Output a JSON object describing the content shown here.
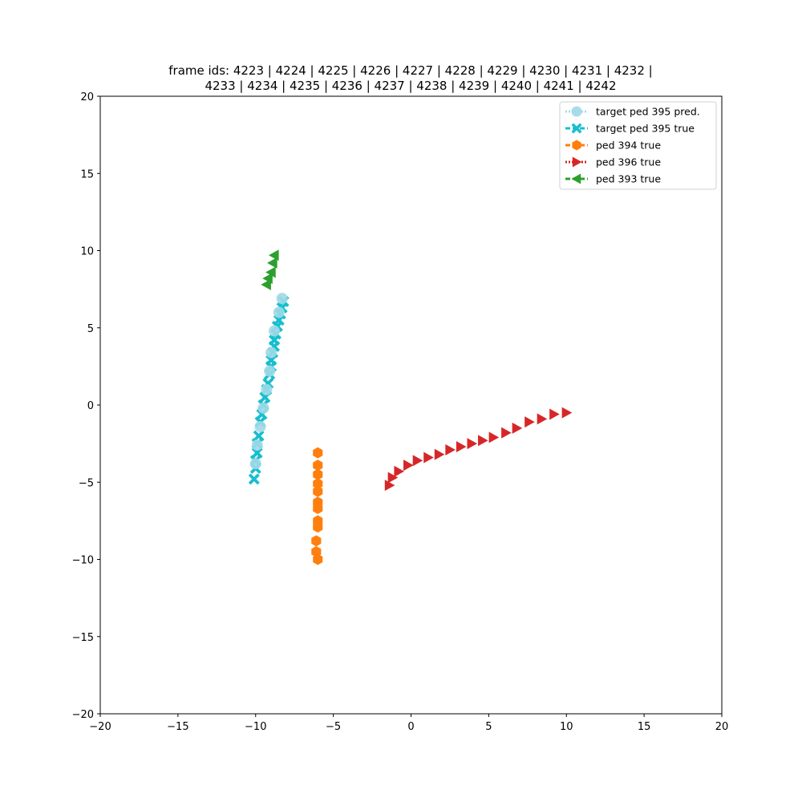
{
  "chart_data": {
    "type": "scatter",
    "title_lines": [
      "frame ids: 4223 | 4224 | 4225 | 4226 | 4227 | 4228 | 4229 | 4230 | 4231 | 4232 |",
      "4233 | 4234 | 4235 | 4236 | 4237 | 4238 | 4239 | 4240 | 4241 | 4242"
    ],
    "xlabel": "",
    "ylabel": "",
    "xlim": [
      -20,
      20
    ],
    "ylim": [
      -20,
      20
    ],
    "x_ticks": [
      -20,
      -15,
      -10,
      -5,
      0,
      5,
      10,
      15,
      20
    ],
    "y_ticks": [
      -20,
      -15,
      -10,
      -5,
      0,
      5,
      10,
      15,
      20
    ],
    "x_tick_labels": [
      "−20",
      "−15",
      "−10",
      "−5",
      "0",
      "5",
      "10",
      "15",
      "20"
    ],
    "y_tick_labels": [
      "−20",
      "−15",
      "−10",
      "−5",
      "0",
      "5",
      "10",
      "15",
      "20"
    ],
    "grid": false,
    "legend_position": "top-right",
    "series": [
      {
        "name": "target ped 395 pred.",
        "marker": "circle",
        "color": "#9ed9e5",
        "opacity": 0.9,
        "points": [
          [
            -8.3,
            6.9
          ],
          [
            -8.5,
            6.0
          ],
          [
            -8.8,
            4.8
          ],
          [
            -9.0,
            3.4
          ],
          [
            -9.1,
            2.2
          ],
          [
            -9.3,
            1.0
          ],
          [
            -9.5,
            -0.2
          ],
          [
            -9.7,
            -1.4
          ],
          [
            -9.9,
            -2.6
          ],
          [
            -10.0,
            -3.8
          ]
        ]
      },
      {
        "name": "target ped 395 true",
        "marker": "x-filled",
        "color": "#17becf",
        "opacity": 1,
        "points": [
          [
            -8.2,
            6.7
          ],
          [
            -8.3,
            6.3
          ],
          [
            -8.4,
            5.9
          ],
          [
            -8.5,
            5.5
          ],
          [
            -8.6,
            5.1
          ],
          [
            -8.7,
            4.6
          ],
          [
            -8.8,
            4.2
          ],
          [
            -8.8,
            3.8
          ],
          [
            -8.9,
            3.4
          ],
          [
            -9.0,
            2.9
          ],
          [
            -9.0,
            2.5
          ],
          [
            -9.1,
            2.0
          ],
          [
            -9.2,
            1.4
          ],
          [
            -9.3,
            1.0
          ],
          [
            -9.4,
            0.5
          ],
          [
            -9.5,
            0.0
          ],
          [
            -9.6,
            -0.6
          ],
          [
            -9.7,
            -1.1
          ],
          [
            -9.8,
            -2.0
          ],
          [
            -9.9,
            -2.5
          ],
          [
            -9.9,
            -3.1
          ],
          [
            -10.0,
            -3.6
          ],
          [
            -10.0,
            -4.1
          ],
          [
            -10.1,
            -4.8
          ]
        ]
      },
      {
        "name": "ped 394 true",
        "marker": "hexagon",
        "color": "#ff7f0e",
        "opacity": 1,
        "points": [
          [
            -6.0,
            -3.1
          ],
          [
            -6.0,
            -3.9
          ],
          [
            -6.0,
            -4.5
          ],
          [
            -6.0,
            -5.1
          ],
          [
            -6.0,
            -5.6
          ],
          [
            -6.0,
            -6.3
          ],
          [
            -6.0,
            -6.7
          ],
          [
            -6.0,
            -7.5
          ],
          [
            -6.0,
            -7.9
          ],
          [
            -6.1,
            -8.8
          ],
          [
            -6.1,
            -9.5
          ],
          [
            -6.0,
            -10.0
          ]
        ]
      },
      {
        "name": "ped 396 true",
        "marker": "triangle-right",
        "color": "#d62728",
        "opacity": 1,
        "points": [
          [
            10.0,
            -0.5
          ],
          [
            9.2,
            -0.6
          ],
          [
            8.4,
            -0.9
          ],
          [
            7.6,
            -1.1
          ],
          [
            6.8,
            -1.5
          ],
          [
            6.1,
            -1.8
          ],
          [
            5.3,
            -2.1
          ],
          [
            4.6,
            -2.3
          ],
          [
            3.9,
            -2.5
          ],
          [
            3.2,
            -2.7
          ],
          [
            2.5,
            -2.9
          ],
          [
            1.8,
            -3.2
          ],
          [
            1.1,
            -3.4
          ],
          [
            0.4,
            -3.6
          ],
          [
            -0.2,
            -3.9
          ],
          [
            -0.8,
            -4.3
          ],
          [
            -1.2,
            -4.7
          ],
          [
            -1.4,
            -5.2
          ]
        ]
      },
      {
        "name": "ped 393 true",
        "marker": "triangle-left",
        "color": "#2ca02c",
        "opacity": 1,
        "points": [
          [
            -8.8,
            9.7
          ],
          [
            -8.9,
            9.2
          ],
          [
            -9.0,
            8.6
          ],
          [
            -9.2,
            8.2
          ],
          [
            -9.3,
            7.8
          ]
        ]
      }
    ]
  }
}
